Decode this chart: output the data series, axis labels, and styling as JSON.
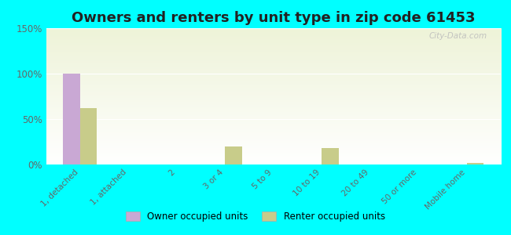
{
  "title": "Owners and renters by unit type in zip code 61453",
  "categories": [
    "1, detached",
    "1, attached",
    "2",
    "3 or 4",
    "5 to 9",
    "10 to 19",
    "20 to 49",
    "50 or more",
    "Mobile home"
  ],
  "owner_values": [
    100,
    0,
    0,
    0,
    0,
    0,
    0,
    0,
    0
  ],
  "renter_values": [
    62,
    0,
    0,
    20,
    0,
    18,
    0,
    0,
    2
  ],
  "owner_color": "#c9a8d4",
  "renter_color": "#c8cc8a",
  "ylim": [
    0,
    150
  ],
  "yticks": [
    0,
    50,
    100,
    150
  ],
  "ytick_labels": [
    "0%",
    "50%",
    "100%",
    "150%"
  ],
  "background_color": "#00ffff",
  "plot_bg_top": "#eef3d8",
  "plot_bg_bottom": "#ffffff",
  "bar_width": 0.35,
  "title_fontsize": 13,
  "watermark": "City-Data.com"
}
